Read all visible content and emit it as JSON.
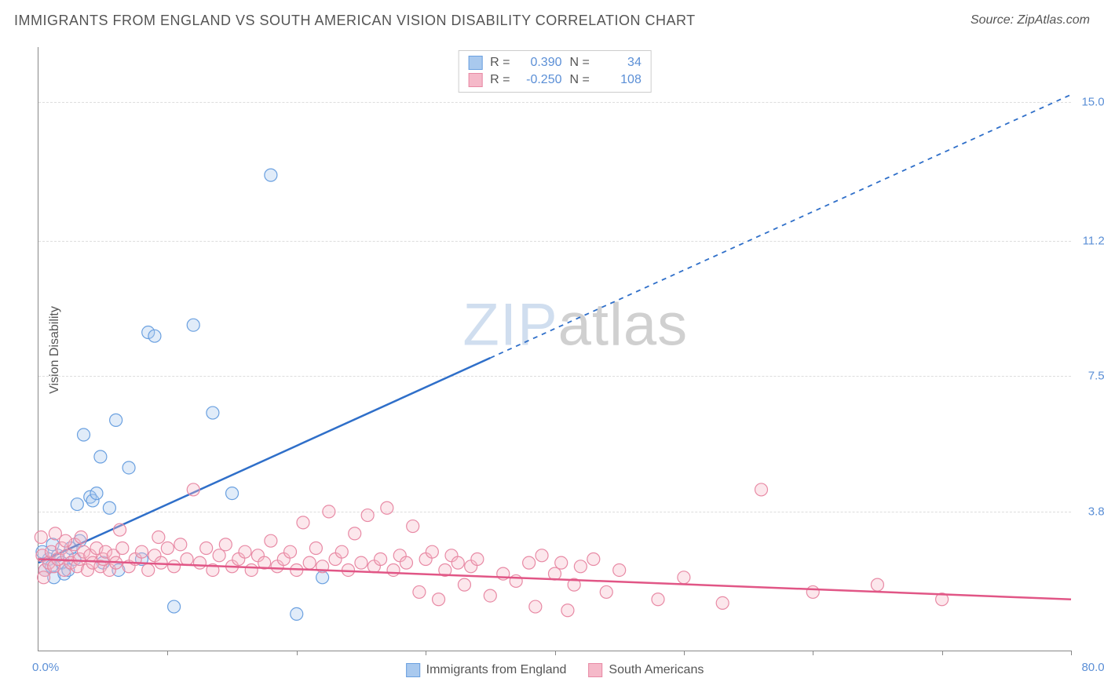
{
  "header": {
    "title": "IMMIGRANTS FROM ENGLAND VS SOUTH AMERICAN VISION DISABILITY CORRELATION CHART",
    "source_prefix": "Source: ",
    "source_name": "ZipAtlas.com"
  },
  "watermark": {
    "part1": "ZIP",
    "part2": "atlas"
  },
  "chart": {
    "type": "scatter",
    "ylabel": "Vision Disability",
    "xlim": [
      0,
      80
    ],
    "ylim": [
      0,
      16.5
    ],
    "x_origin_label": "0.0%",
    "x_max_label": "80.0%",
    "xtick_positions": [
      10,
      20,
      30,
      40,
      50,
      60,
      70,
      80
    ],
    "yticks": [
      {
        "value": 3.8,
        "label": "3.8%"
      },
      {
        "value": 7.5,
        "label": "7.5%"
      },
      {
        "value": 11.2,
        "label": "11.2%"
      },
      {
        "value": 15.0,
        "label": "15.0%"
      }
    ],
    "background_color": "#ffffff",
    "grid_color": "#dddddd",
    "axis_color": "#888888",
    "marker_radius": 8,
    "marker_stroke_width": 1.2,
    "marker_fill_opacity": 0.35,
    "series": [
      {
        "name": "Immigrants from England",
        "label": "Immigrants from England",
        "color_stroke": "#6aa0e0",
        "color_fill": "#a9c9ee",
        "trend_color": "#2f6fc9",
        "R": "0.390",
        "N": "34",
        "trend": {
          "x1": 0,
          "y1": 2.4,
          "x2": 35,
          "y2": 8.0,
          "dash_x2": 80,
          "dash_y2": 15.2
        },
        "points": [
          [
            0.5,
            2.2
          ],
          [
            0.8,
            2.5
          ],
          [
            1.0,
            2.3
          ],
          [
            1.2,
            2.0
          ],
          [
            1.5,
            2.6
          ],
          [
            1.8,
            2.4
          ],
          [
            2.0,
            2.1
          ],
          [
            2.5,
            2.8
          ],
          [
            2.8,
            2.5
          ],
          [
            3.0,
            4.0
          ],
          [
            3.2,
            3.0
          ],
          [
            3.5,
            5.9
          ],
          [
            4.0,
            4.2
          ],
          [
            4.2,
            4.1
          ],
          [
            4.5,
            4.3
          ],
          [
            4.8,
            5.3
          ],
          [
            5.0,
            2.4
          ],
          [
            5.5,
            3.9
          ],
          [
            6.0,
            6.3
          ],
          [
            6.2,
            2.2
          ],
          [
            7.0,
            5.0
          ],
          [
            8.0,
            2.5
          ],
          [
            8.5,
            8.7
          ],
          [
            9.0,
            8.6
          ],
          [
            10.5,
            1.2
          ],
          [
            12.0,
            8.9
          ],
          [
            13.5,
            6.5
          ],
          [
            15.0,
            4.3
          ],
          [
            18.0,
            13.0
          ],
          [
            20.0,
            1.0
          ],
          [
            22.0,
            2.0
          ],
          [
            0.3,
            2.7
          ],
          [
            1.1,
            2.9
          ],
          [
            2.3,
            2.2
          ]
        ]
      },
      {
        "name": "South Americans",
        "label": "South Americans",
        "color_stroke": "#e88aa5",
        "color_fill": "#f5b9c9",
        "trend_color": "#e15686",
        "R": "-0.250",
        "N": "108",
        "trend": {
          "x1": 0,
          "y1": 2.5,
          "x2": 80,
          "y2": 1.4,
          "dash_x2": null,
          "dash_y2": null
        },
        "points": [
          [
            0.3,
            2.6
          ],
          [
            0.5,
            2.2
          ],
          [
            0.8,
            2.4
          ],
          [
            1.0,
            2.7
          ],
          [
            1.2,
            2.3
          ],
          [
            1.5,
            2.5
          ],
          [
            1.8,
            2.8
          ],
          [
            2.0,
            2.2
          ],
          [
            2.2,
            2.6
          ],
          [
            2.5,
            2.4
          ],
          [
            2.8,
            2.9
          ],
          [
            3.0,
            2.3
          ],
          [
            3.2,
            2.5
          ],
          [
            3.5,
            2.7
          ],
          [
            3.8,
            2.2
          ],
          [
            4.0,
            2.6
          ],
          [
            4.2,
            2.4
          ],
          [
            4.5,
            2.8
          ],
          [
            4.8,
            2.3
          ],
          [
            5.0,
            2.5
          ],
          [
            5.2,
            2.7
          ],
          [
            5.5,
            2.2
          ],
          [
            5.8,
            2.6
          ],
          [
            6.0,
            2.4
          ],
          [
            6.5,
            2.8
          ],
          [
            7.0,
            2.3
          ],
          [
            7.5,
            2.5
          ],
          [
            8.0,
            2.7
          ],
          [
            8.5,
            2.2
          ],
          [
            9.0,
            2.6
          ],
          [
            9.5,
            2.4
          ],
          [
            10.0,
            2.8
          ],
          [
            10.5,
            2.3
          ],
          [
            11.0,
            2.9
          ],
          [
            11.5,
            2.5
          ],
          [
            12.0,
            4.4
          ],
          [
            12.5,
            2.4
          ],
          [
            13.0,
            2.8
          ],
          [
            13.5,
            2.2
          ],
          [
            14.0,
            2.6
          ],
          [
            14.5,
            2.9
          ],
          [
            15.0,
            2.3
          ],
          [
            15.5,
            2.5
          ],
          [
            16.0,
            2.7
          ],
          [
            16.5,
            2.2
          ],
          [
            17.0,
            2.6
          ],
          [
            17.5,
            2.4
          ],
          [
            18.0,
            3.0
          ],
          [
            18.5,
            2.3
          ],
          [
            19.0,
            2.5
          ],
          [
            19.5,
            2.7
          ],
          [
            20.0,
            2.2
          ],
          [
            20.5,
            3.5
          ],
          [
            21.0,
            2.4
          ],
          [
            21.5,
            2.8
          ],
          [
            22.0,
            2.3
          ],
          [
            22.5,
            3.8
          ],
          [
            23.0,
            2.5
          ],
          [
            23.5,
            2.7
          ],
          [
            24.0,
            2.2
          ],
          [
            24.5,
            3.2
          ],
          [
            25.0,
            2.4
          ],
          [
            25.5,
            3.7
          ],
          [
            26.0,
            2.3
          ],
          [
            26.5,
            2.5
          ],
          [
            27.0,
            3.9
          ],
          [
            27.5,
            2.2
          ],
          [
            28.0,
            2.6
          ],
          [
            28.5,
            2.4
          ],
          [
            29.0,
            3.4
          ],
          [
            29.5,
            1.6
          ],
          [
            30.0,
            2.5
          ],
          [
            30.5,
            2.7
          ],
          [
            31.0,
            1.4
          ],
          [
            31.5,
            2.2
          ],
          [
            32.0,
            2.6
          ],
          [
            32.5,
            2.4
          ],
          [
            33.0,
            1.8
          ],
          [
            33.5,
            2.3
          ],
          [
            34.0,
            2.5
          ],
          [
            35.0,
            1.5
          ],
          [
            36.0,
            2.1
          ],
          [
            37.0,
            1.9
          ],
          [
            38.0,
            2.4
          ],
          [
            38.5,
            1.2
          ],
          [
            39.0,
            2.6
          ],
          [
            40.0,
            2.1
          ],
          [
            40.5,
            2.4
          ],
          [
            41.0,
            1.1
          ],
          [
            41.5,
            1.8
          ],
          [
            42.0,
            2.3
          ],
          [
            43.0,
            2.5
          ],
          [
            44.0,
            1.6
          ],
          [
            45.0,
            2.2
          ],
          [
            48.0,
            1.4
          ],
          [
            50.0,
            2.0
          ],
          [
            53.0,
            1.3
          ],
          [
            56.0,
            4.4
          ],
          [
            60.0,
            1.6
          ],
          [
            65.0,
            1.8
          ],
          [
            70.0,
            1.4
          ],
          [
            0.2,
            3.1
          ],
          [
            0.4,
            2.0
          ],
          [
            1.3,
            3.2
          ],
          [
            2.1,
            3.0
          ],
          [
            3.3,
            3.1
          ],
          [
            6.3,
            3.3
          ],
          [
            9.3,
            3.1
          ]
        ]
      }
    ]
  },
  "bottom_legend": {
    "items": [
      {
        "label": "Immigrants from England",
        "fill": "#a9c9ee",
        "stroke": "#6aa0e0"
      },
      {
        "label": "South Americans",
        "fill": "#f5b9c9",
        "stroke": "#e88aa5"
      }
    ]
  }
}
